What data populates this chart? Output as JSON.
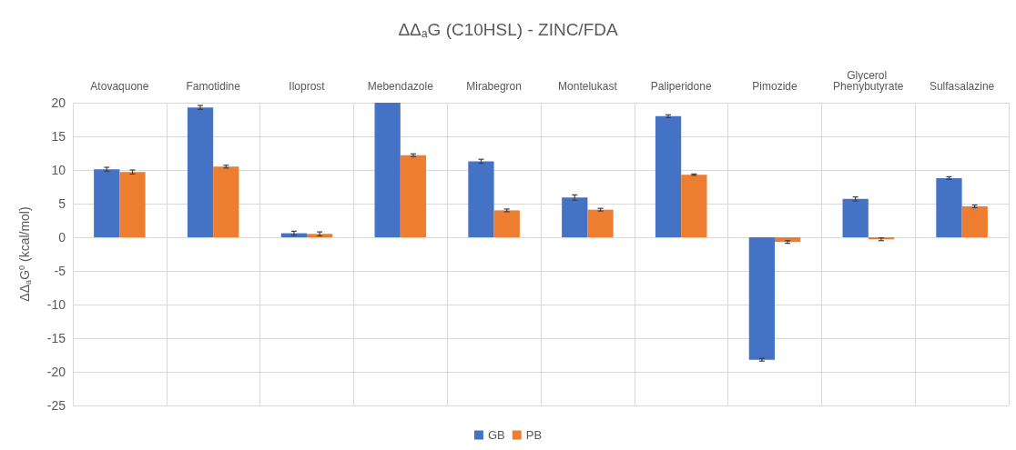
{
  "chart_data": {
    "type": "bar",
    "title": "ΔΔ$_{a}$G (C10HSL) - ZINC/FDA",
    "ylabel": "ΔΔ$_{a}$G$^{0}$ (kcal/mol)",
    "categories": [
      "Atovaquone",
      "Famotidine",
      "Iloprost",
      "Mebendazole",
      "Mirabegron",
      "Montelukast",
      "Paliperidone",
      "Pimozide",
      "Glycerol Phenybutyrate",
      "Sulfasalazine"
    ],
    "series": [
      {
        "name": "GB",
        "color": "#4472c4",
        "values": [
          10.1,
          19.3,
          0.6,
          20,
          11.3,
          5.9,
          18.0,
          -18.2,
          5.7,
          8.8
        ],
        "errors": [
          0.3,
          0.3,
          0.3,
          null,
          0.3,
          0.4,
          0.2,
          0.2,
          0.3,
          0.2
        ]
      },
      {
        "name": "PB",
        "color": "#ed7d31",
        "values": [
          9.7,
          10.5,
          0.5,
          12.2,
          4.0,
          4.1,
          9.3,
          -0.7,
          -0.3,
          4.6
        ],
        "errors": [
          0.3,
          0.2,
          0.3,
          0.2,
          0.2,
          0.2,
          0.1,
          0.2,
          0.2,
          0.2
        ]
      }
    ],
    "ylim": [
      -25,
      20
    ],
    "yticks": [
      -25,
      -20,
      -15,
      -10,
      -5,
      0,
      5,
      10,
      15,
      20
    ],
    "grid": true,
    "legend": "bottom"
  }
}
